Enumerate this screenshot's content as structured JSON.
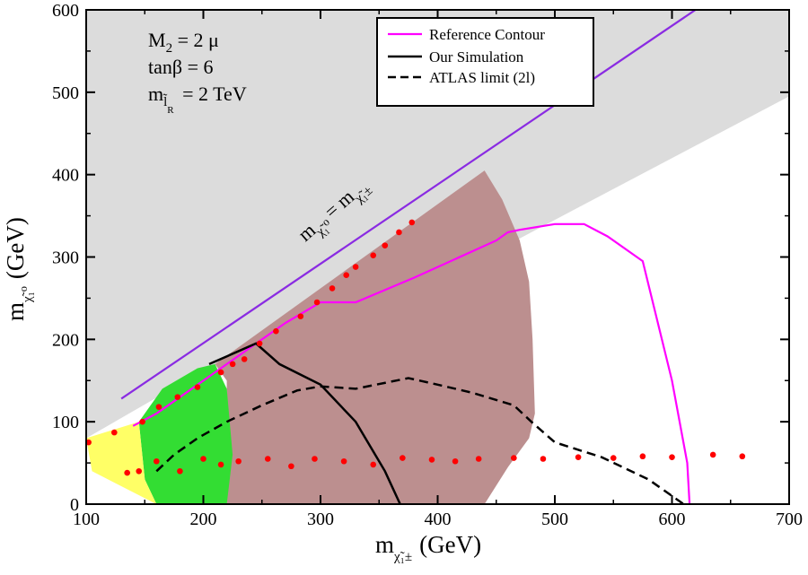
{
  "chart_data": {
    "type": "scatter",
    "title": "",
    "xlabel": "m",
    "xlabel_sub": "χ̃₁±",
    "xlabel_unit": "(GeV)",
    "ylabel": "m",
    "ylabel_sub": "χ̃₁⁰",
    "ylabel_unit": "(GeV)",
    "xlim": [
      100,
      700
    ],
    "ylim": [
      0,
      600
    ],
    "xticks": [
      "100",
      "200",
      "300",
      "400",
      "500",
      "600",
      "700"
    ],
    "yticks": [
      "0",
      "100",
      "200",
      "300",
      "400",
      "500",
      "600"
    ],
    "info_text": {
      "line1": "M",
      "line1_sub": "2",
      "line1_rest": " = 2 μ",
      "line2": "tanβ = 6",
      "line3": "m",
      "line3_sub": "l̃",
      "line3_subsub": "R",
      "line3_rest": " = 2 TeV"
    },
    "diagonal_label": {
      "lhs": "m",
      "lhs_sub": "χ̃₁⁰",
      "rhs": "= m",
      "rhs_sub": "χ̃₁±"
    },
    "legend": {
      "reference": "Reference Contour",
      "simulation": "Our Simulation",
      "atlas": "ATLAS limit (2l)"
    },
    "colors": {
      "excluded_gray": "#dcdcdc",
      "brown_region": "#bc8f8f",
      "green_region": "#33dd33",
      "yellow_region": "#ffff66",
      "diagonal_line": "#8a2be2",
      "reference_contour": "#ff00ff",
      "points": "#ff0000"
    },
    "regions": {
      "gray_excluded": [
        [
          100,
          0
        ],
        [
          100,
          600
        ],
        [
          700,
          600
        ],
        [
          700,
          495
        ],
        [
          380,
          255
        ],
        [
          210,
          170
        ],
        [
          100,
          80
        ]
      ],
      "brown": [
        [
          210,
          170
        ],
        [
          440,
          405
        ],
        [
          455,
          370
        ],
        [
          470,
          320
        ],
        [
          478,
          270
        ],
        [
          481,
          200
        ],
        [
          483,
          110
        ],
        [
          478,
          80
        ],
        [
          460,
          45
        ],
        [
          440,
          0
        ],
        [
          220,
          0
        ],
        [
          220,
          150
        ]
      ],
      "green": [
        [
          145,
          100
        ],
        [
          165,
          140
        ],
        [
          195,
          165
        ],
        [
          210,
          170
        ],
        [
          220,
          140
        ],
        [
          225,
          60
        ],
        [
          220,
          0
        ],
        [
          160,
          0
        ],
        [
          150,
          30
        ]
      ],
      "yellow": [
        [
          100,
          80
        ],
        [
          145,
          100
        ],
        [
          150,
          30
        ],
        [
          160,
          0
        ],
        [
          105,
          40
        ]
      ]
    },
    "diagonal": [
      [
        130,
        128
      ],
      [
        620,
        600
      ]
    ],
    "series": [
      {
        "name": "Reference Contour",
        "style": "magenta",
        "x": [
          140,
          160,
          200,
          240,
          270,
          300,
          330,
          380,
          450,
          460,
          470,
          500,
          525,
          545,
          575,
          600,
          613,
          615
        ],
        "y": [
          95,
          110,
          150,
          190,
          220,
          245,
          245,
          275,
          320,
          330,
          333,
          340,
          340,
          325,
          295,
          150,
          50,
          0
        ]
      },
      {
        "name": "Our Simulation",
        "style": "solid-black",
        "x": [
          205,
          245,
          265,
          300,
          330,
          355,
          368
        ],
        "y": [
          170,
          195,
          170,
          145,
          100,
          40,
          0
        ]
      },
      {
        "name": "ATLAS limit (2l)",
        "style": "dashed-black",
        "x": [
          160,
          175,
          195,
          220,
          250,
          280,
          300,
          330,
          375,
          400,
          430,
          465,
          480,
          500,
          540,
          580,
          610
        ],
        "y": [
          40,
          60,
          80,
          100,
          120,
          138,
          143,
          140,
          153,
          145,
          135,
          120,
          100,
          75,
          57,
          30,
          0
        ]
      },
      {
        "name": "points-diagonal",
        "style": "red-points",
        "x": [
          102,
          124,
          148,
          162,
          178,
          195,
          215,
          225,
          235,
          248,
          262,
          283,
          297,
          310,
          322,
          330,
          345,
          355,
          367,
          378
        ],
        "y": [
          75,
          87,
          100,
          118,
          130,
          142,
          160,
          170,
          176,
          195,
          210,
          228,
          245,
          262,
          278,
          288,
          302,
          314,
          330,
          342
        ]
      },
      {
        "name": "points-horizontal",
        "style": "red-points",
        "x": [
          135,
          145,
          160,
          180,
          200,
          215,
          230,
          255,
          275,
          295,
          320,
          345,
          370,
          395,
          415,
          435,
          465,
          490,
          520,
          550,
          575,
          600,
          635,
          660
        ],
        "y": [
          38,
          40,
          52,
          40,
          55,
          48,
          52,
          55,
          46,
          55,
          52,
          48,
          56,
          54,
          52,
          55,
          56,
          55,
          57,
          56,
          58,
          57,
          60,
          58
        ]
      }
    ]
  }
}
